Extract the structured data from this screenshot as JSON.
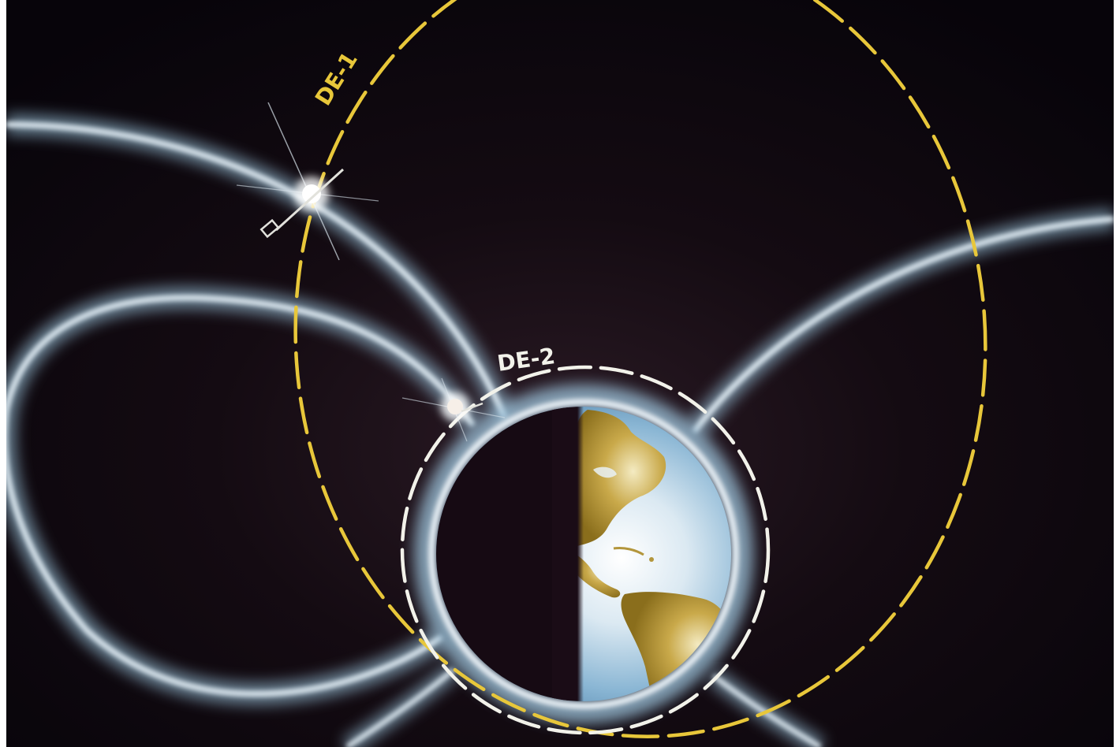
{
  "orbits": {
    "de1": {
      "label": "DE-1"
    },
    "de2": {
      "label": "DE-2"
    }
  },
  "colors": {
    "space": "#0d0709",
    "field_lines": "#c9dce8",
    "de1_orbit": "#e8c73a",
    "de2_orbit": "#f2f2ea",
    "ocean": "#7fb2d6",
    "land": "#a88a2c",
    "earth_shadow": "#1a0f18"
  },
  "icons": [
    "satellite-de1-icon",
    "satellite-de2-icon",
    "earth-globe-icon"
  ]
}
